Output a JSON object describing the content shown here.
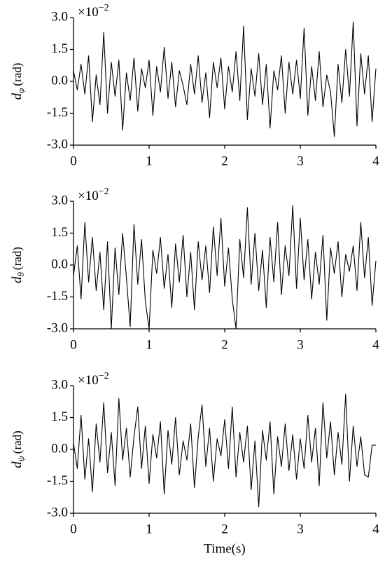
{
  "chart_data": [
    {
      "type": "line",
      "color": "#000000",
      "ylabel": "d",
      "ylabel_sub": "φ",
      "ylabel_unit": "(rad)",
      "multiplier_base": "×10",
      "multiplier_exponent": "−2",
      "x": [
        0,
        0.05,
        0.1,
        0.15,
        0.2,
        0.25,
        0.3,
        0.35,
        0.4,
        0.45,
        0.5,
        0.55,
        0.6,
        0.65,
        0.7,
        0.75,
        0.8,
        0.85,
        0.9,
        0.95,
        1,
        1.05,
        1.1,
        1.15,
        1.2,
        1.25,
        1.3,
        1.35,
        1.4,
        1.45,
        1.5,
        1.55,
        1.6,
        1.65,
        1.7,
        1.75,
        1.8,
        1.85,
        1.9,
        1.95,
        2,
        2.05,
        2.1,
        2.15,
        2.2,
        2.25,
        2.3,
        2.35,
        2.4,
        2.45,
        2.5,
        2.55,
        2.6,
        2.65,
        2.7,
        2.75,
        2.8,
        2.85,
        2.9,
        2.95,
        3,
        3.05,
        3.1,
        3.15,
        3.2,
        3.25,
        3.3,
        3.35,
        3.4,
        3.45,
        3.5,
        3.55,
        3.6,
        3.65,
        3.7,
        3.75,
        3.8,
        3.85,
        3.9,
        3.95,
        4
      ],
      "values": [
        0.5,
        -0.4,
        0.8,
        -0.6,
        1.2,
        -1.9,
        0.3,
        -1.1,
        2.3,
        -1.5,
        0.9,
        -0.7,
        1.0,
        -2.3,
        0.4,
        -0.9,
        1.1,
        -1.4,
        0.6,
        -0.3,
        1.0,
        -1.6,
        0.7,
        -0.5,
        1.6,
        -0.8,
        0.9,
        -1.2,
        0.5,
        -0.2,
        -1.1,
        0.8,
        -0.6,
        1.2,
        -1.0,
        0.4,
        -1.7,
        0.9,
        -0.3,
        1.1,
        -1.3,
        0.7,
        -0.5,
        1.4,
        -0.9,
        2.6,
        -1.8,
        0.6,
        -0.7,
        1.3,
        -1.1,
        0.8,
        -2.2,
        0.5,
        -0.4,
        1.2,
        -1.5,
        0.9,
        -0.6,
        1.0,
        -0.8,
        2.5,
        -1.6,
        0.7,
        -0.9,
        1.4,
        -1.2,
        0.3,
        -0.5,
        -2.6,
        0.8,
        -1.0,
        1.5,
        -0.7,
        2.8,
        -2.1,
        1.3,
        -0.6,
        1.2,
        -1.9,
        0.6
      ],
      "xlim": [
        0,
        4
      ],
      "xticks": [
        0,
        1,
        2,
        3,
        4
      ],
      "ylim": [
        -3,
        3
      ],
      "yticks": [
        {
          "value": -3,
          "label": "-3.0"
        },
        {
          "value": -1.5,
          "label": "-1.5"
        },
        {
          "value": 0,
          "label": "0.0"
        },
        {
          "value": 1.5,
          "label": "1.5"
        },
        {
          "value": 3,
          "label": "3.0"
        }
      ]
    },
    {
      "type": "line",
      "color": "#000000",
      "ylabel": "d",
      "ylabel_sub": "θ",
      "ylabel_unit": "(rad)",
      "multiplier_base": "×10",
      "multiplier_exponent": "−2",
      "x": [
        0,
        0.05,
        0.1,
        0.15,
        0.2,
        0.25,
        0.3,
        0.35,
        0.4,
        0.45,
        0.5,
        0.55,
        0.6,
        0.65,
        0.7,
        0.75,
        0.8,
        0.85,
        0.9,
        0.95,
        1,
        1.05,
        1.1,
        1.15,
        1.2,
        1.25,
        1.3,
        1.35,
        1.4,
        1.45,
        1.5,
        1.55,
        1.6,
        1.65,
        1.7,
        1.75,
        1.8,
        1.85,
        1.9,
        1.95,
        2,
        2.05,
        2.1,
        2.15,
        2.2,
        2.25,
        2.3,
        2.35,
        2.4,
        2.45,
        2.5,
        2.55,
        2.6,
        2.65,
        2.7,
        2.75,
        2.8,
        2.85,
        2.9,
        2.95,
        3,
        3.05,
        3.1,
        3.15,
        3.2,
        3.25,
        3.3,
        3.35,
        3.4,
        3.45,
        3.5,
        3.55,
        3.6,
        3.65,
        3.7,
        3.75,
        3.8,
        3.85,
        3.9,
        3.95,
        4
      ],
      "values": [
        -0.5,
        0.9,
        -1.6,
        2.0,
        -0.8,
        1.3,
        -1.2,
        0.6,
        -2.1,
        1.1,
        -3.0,
        0.8,
        -1.4,
        1.5,
        -0.6,
        -2.9,
        1.9,
        -0.9,
        1.2,
        -1.7,
        -3.0,
        0.7,
        -0.4,
        1.3,
        -1.1,
        0.5,
        -2.0,
        1.0,
        -0.8,
        1.4,
        -1.5,
        0.6,
        -2.1,
        1.1,
        -0.7,
        0.9,
        -1.3,
        1.8,
        -0.5,
        2.2,
        -1.0,
        0.8,
        -1.6,
        -3.0,
        1.2,
        -0.6,
        2.7,
        -0.9,
        1.5,
        -1.2,
        0.7,
        -2.0,
        1.3,
        -0.8,
        2.0,
        -1.4,
        0.9,
        -0.5,
        2.8,
        -1.1,
        2.2,
        -0.7,
        1.2,
        -1.6,
        0.6,
        -0.9,
        1.4,
        -2.6,
        0.8,
        -0.4,
        1.1,
        -1.5,
        0.5,
        -0.3,
        0.9,
        -1.2,
        2.0,
        -0.6,
        1.3,
        -1.9,
        0.2
      ],
      "xlim": [
        0,
        4
      ],
      "xticks": [
        0,
        1,
        2,
        3,
        4
      ],
      "ylim": [
        -3,
        3
      ],
      "yticks": [
        {
          "value": -3,
          "label": "-3.0"
        },
        {
          "value": -1.5,
          "label": "-1.5"
        },
        {
          "value": 0,
          "label": "0.0"
        },
        {
          "value": 1.5,
          "label": "1.5"
        },
        {
          "value": 3,
          "label": "3.0"
        }
      ]
    },
    {
      "type": "line",
      "color": "#000000",
      "ylabel": "d",
      "ylabel_sub": "ψ",
      "ylabel_unit": "(rad)",
      "multiplier_base": "×10",
      "multiplier_exponent": "−2",
      "xlabel": "Time(s)",
      "x": [
        0,
        0.05,
        0.1,
        0.15,
        0.2,
        0.25,
        0.3,
        0.35,
        0.4,
        0.45,
        0.5,
        0.55,
        0.6,
        0.65,
        0.7,
        0.75,
        0.8,
        0.85,
        0.9,
        0.95,
        1,
        1.05,
        1.1,
        1.15,
        1.2,
        1.25,
        1.3,
        1.35,
        1.4,
        1.45,
        1.5,
        1.55,
        1.6,
        1.65,
        1.7,
        1.75,
        1.8,
        1.85,
        1.9,
        1.95,
        2,
        2.05,
        2.1,
        2.15,
        2.2,
        2.25,
        2.3,
        2.35,
        2.4,
        2.45,
        2.5,
        2.55,
        2.6,
        2.65,
        2.7,
        2.75,
        2.8,
        2.85,
        2.9,
        2.95,
        3,
        3.05,
        3.1,
        3.15,
        3.2,
        3.25,
        3.3,
        3.35,
        3.4,
        3.45,
        3.5,
        3.55,
        3.6,
        3.65,
        3.7,
        3.75,
        3.8,
        3.85,
        3.9,
        3.95,
        4
      ],
      "values": [
        0.3,
        -0.9,
        1.6,
        -1.4,
        0.5,
        -2.0,
        1.2,
        -0.6,
        2.2,
        -1.1,
        0.8,
        -1.7,
        2.4,
        -0.5,
        1.0,
        -1.3,
        0.6,
        2.0,
        -0.9,
        1.1,
        -1.6,
        0.7,
        -0.4,
        1.3,
        -2.1,
        0.9,
        -0.7,
        1.5,
        -1.2,
        0.4,
        -0.5,
        1.2,
        -1.8,
        0.6,
        2.1,
        -0.8,
        1.0,
        -1.5,
        0.5,
        -0.3,
        1.4,
        -0.9,
        2.0,
        -1.3,
        0.8,
        -0.6,
        1.1,
        -1.9,
        0.4,
        -2.7,
        0.9,
        -0.5,
        1.3,
        -2.1,
        0.6,
        -0.8,
        1.2,
        -1.0,
        0.7,
        -1.4,
        0.5,
        -0.9,
        1.6,
        -0.6,
        1.0,
        -1.7,
        2.2,
        -0.4,
        1.3,
        -1.2,
        0.8,
        -0.7,
        2.6,
        -1.5,
        1.1,
        -0.8,
        0.6,
        -1.2,
        -1.3,
        0.2,
        0.2
      ],
      "xlim": [
        0,
        4
      ],
      "xticks": [
        0,
        1,
        2,
        3,
        4
      ],
      "ylim": [
        -3,
        3
      ],
      "yticks": [
        {
          "value": -3,
          "label": "-3.0"
        },
        {
          "value": -1.5,
          "label": "-1.5"
        },
        {
          "value": 0,
          "label": "0.0"
        },
        {
          "value": 1.5,
          "label": "1.5"
        },
        {
          "value": 3,
          "label": "3.0"
        }
      ]
    }
  ]
}
